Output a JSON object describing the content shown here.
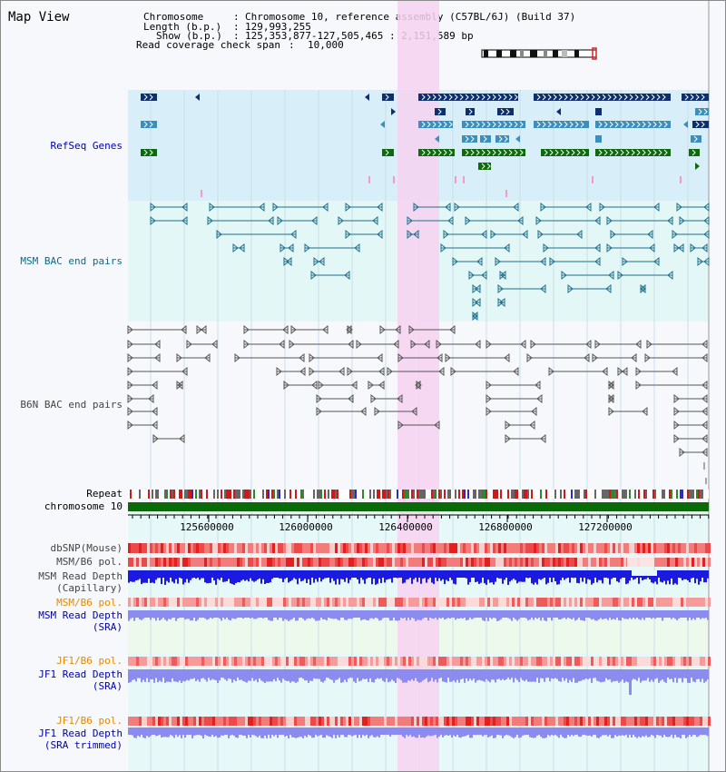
{
  "title": "Map View",
  "info": {
    "chromosome_key": "Chromosome",
    "chromosome_val": "Chromosome 10, reference assembly (C57BL/6J) (Build 37)",
    "length_key": "Length (b.p.)",
    "length_val": "129,993,255",
    "show_key": "Show (b.p.)",
    "show_val": "125,353,877-127,505,465 : 2,151,589 bp",
    "span_key": "Read coverage check span",
    "span_val": "10,000",
    "sep": ":"
  },
  "tracks": {
    "refseq": "RefSeq Genes",
    "msm_bac": "MSM BAC end pairs",
    "b6n_bac": "B6N BAC end pairs",
    "repeat": "Repeat",
    "chromosome": "chromosome 10",
    "dbsnp": "dbSNP(Mouse)",
    "msm_b6_pol_1": "MSM/B6 pol.",
    "msm_read_depth_cap_1": "MSM Read Depth",
    "msm_read_depth_cap_2": "(Capillary)",
    "msm_b6_pol_2": "MSM/B6 pol.",
    "msm_read_depth_sra_1": "MSM Read Depth",
    "msm_read_depth_sra_2": "(SRA)",
    "jf1_b6_pol_1": "JF1/B6 pol.",
    "jf1_read_depth_sra_1": "JF1 Read Depth",
    "jf1_read_depth_sra_2": "(SRA)",
    "jf1_b6_pol_2": "JF1/B6 pol.",
    "jf1_read_depth_trim_1": "JF1 Read Depth",
    "jf1_read_depth_trim_2": "(SRA trimmed)"
  },
  "axis_ticks": [
    "125600000",
    "126000000",
    "126400000",
    "126800000",
    "127200000"
  ],
  "colors": {
    "refseq_bg": "#d8eff9",
    "bac_bg": "#e4f7f7",
    "highlight": "#f7d2f1",
    "gene_navy": "#0e2f6e",
    "gene_light": "#3a8fbf",
    "gene_green": "#0d6b0d",
    "chrom_green": "#0a6a0a",
    "bac_teal": "#1d6f8c",
    "bac_gray": "#555555",
    "depth_blue": "#1a1ae0",
    "depth_light": "#8c8cf0"
  }
}
